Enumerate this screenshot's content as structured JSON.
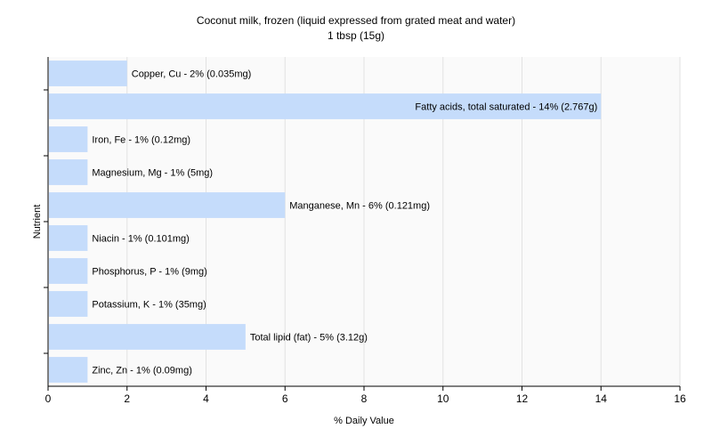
{
  "chart_data": {
    "type": "bar",
    "orientation": "horizontal",
    "title": "Coconut milk, frozen (liquid expressed from grated meat and water)",
    "subtitle": "1 tbsp (15g)",
    "xlabel": "% Daily Value",
    "ylabel": "Nutrient",
    "xlim": [
      0,
      16
    ],
    "xticks": [
      "0",
      "2",
      "4",
      "6",
      "8",
      "10",
      "12",
      "14",
      "16"
    ],
    "grid": true,
    "bar_color": "#c5dcfb",
    "categories": [
      "Copper, Cu",
      "Fatty acids, total saturated",
      "Iron, Fe",
      "Magnesium, Mg",
      "Manganese, Mn",
      "Niacin",
      "Phosphorus, P",
      "Potassium, K",
      "Total lipid (fat)",
      "Zinc, Zn"
    ],
    "values": [
      2,
      14,
      1,
      1,
      6,
      1,
      1,
      1,
      5,
      1
    ],
    "labels": [
      "Copper, Cu - 2% (0.035mg)",
      "Fatty acids, total saturated - 14% (2.767g)",
      "Iron, Fe - 1% (0.12mg)",
      "Magnesium, Mg - 1% (5mg)",
      "Manganese, Mn - 6% (0.121mg)",
      "Niacin - 1% (0.101mg)",
      "Phosphorus, P - 1% (9mg)",
      "Potassium, K - 1% (35mg)",
      "Total lipid (fat) - 5% (3.12g)",
      "Zinc, Zn - 1% (0.09mg)"
    ]
  }
}
